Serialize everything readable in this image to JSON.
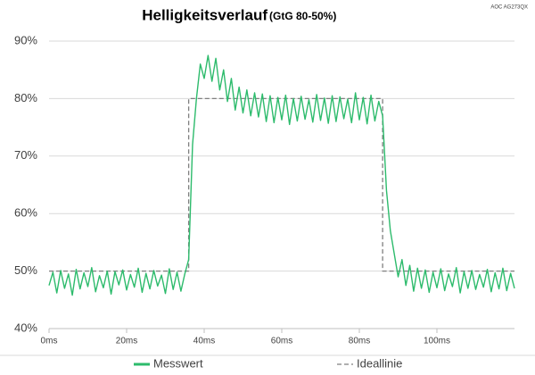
{
  "chart_data": {
    "type": "line",
    "title": "Helligkeitsverlauf",
    "subtitle": "(GtG 80-50%)",
    "annotation": "AOC AG273QX",
    "x": [
      0,
      1,
      2,
      3,
      4,
      5,
      6,
      7,
      8,
      9,
      10,
      11,
      12,
      13,
      14,
      15,
      16,
      17,
      18,
      19,
      20,
      21,
      22,
      23,
      24,
      25,
      26,
      27,
      28,
      29,
      30,
      31,
      32,
      33,
      34,
      35,
      36,
      37,
      38,
      39,
      40,
      41,
      42,
      43,
      44,
      45,
      46,
      47,
      48,
      49,
      50,
      51,
      52,
      53,
      54,
      55,
      56,
      57,
      58,
      59,
      60,
      61,
      62,
      63,
      64,
      65,
      66,
      67,
      68,
      69,
      70,
      71,
      72,
      73,
      74,
      75,
      76,
      77,
      78,
      79,
      80,
      81,
      82,
      83,
      84,
      85,
      86,
      87,
      88,
      89,
      90,
      91,
      92,
      93,
      94,
      95,
      96,
      97,
      98,
      99,
      100,
      101,
      102,
      103,
      104,
      105,
      106,
      107,
      108,
      109,
      110,
      111,
      112,
      113,
      114,
      115,
      116,
      117,
      118,
      119,
      120
    ],
    "series": [
      {
        "name": "Messwert",
        "color": "#2dbb6c",
        "dashed": false,
        "x": [
          0,
          1,
          2,
          3,
          4,
          5,
          6,
          7,
          8,
          9,
          10,
          11,
          12,
          13,
          14,
          15,
          16,
          17,
          18,
          19,
          20,
          21,
          22,
          23,
          24,
          25,
          26,
          27,
          28,
          29,
          30,
          31,
          32,
          33,
          34,
          35,
          36,
          37,
          38,
          39,
          40,
          41,
          42,
          43,
          44,
          45,
          46,
          47,
          48,
          49,
          50,
          51,
          52,
          53,
          54,
          55,
          56,
          57,
          58,
          59,
          60,
          61,
          62,
          63,
          64,
          65,
          66,
          67,
          68,
          69,
          70,
          71,
          72,
          73,
          74,
          75,
          76,
          77,
          78,
          79,
          80,
          81,
          82,
          83,
          84,
          85,
          86,
          87,
          88,
          89,
          90,
          91,
          92,
          93,
          94,
          95,
          96,
          97,
          98,
          99,
          100,
          101,
          102,
          103,
          104,
          105,
          106,
          107,
          108,
          109,
          110,
          111,
          112,
          113,
          114,
          115,
          116,
          117,
          118,
          119,
          120
        ],
        "values": [
          47.5,
          49.8,
          46.2,
          50.1,
          47.0,
          49.5,
          45.8,
          50.3,
          46.9,
          49.7,
          47.3,
          50.6,
          46.4,
          49.2,
          47.1,
          50.0,
          46.0,
          49.9,
          47.6,
          50.2,
          46.7,
          49.4,
          47.2,
          50.5,
          46.3,
          49.6,
          46.9,
          50.1,
          47.4,
          49.3,
          46.1,
          50.4,
          46.8,
          49.8,
          46.5,
          49.5,
          52,
          72,
          80,
          86,
          83.5,
          87.5,
          83,
          87,
          81.5,
          85,
          79.5,
          83.5,
          78,
          82,
          77.5,
          81.5,
          77,
          81,
          76.8,
          80.8,
          76,
          80.5,
          75.8,
          80.2,
          76.3,
          80.6,
          75.5,
          80,
          76.1,
          80.4,
          76.4,
          79.8,
          75.9,
          80.7,
          76.2,
          80.1,
          75.7,
          80.5,
          76,
          80.3,
          76.5,
          79.9,
          75.8,
          81,
          76.3,
          80.2,
          75.6,
          80.6,
          76.1,
          79.5,
          77,
          64,
          57,
          53,
          49,
          52,
          47.5,
          51,
          46.5,
          50.5,
          47,
          50.2,
          46.3,
          49.8,
          47.1,
          50.4,
          46.6,
          49.5,
          47.3,
          50.6,
          46.2,
          49.9,
          47,
          50.1,
          46.8,
          49.4,
          47.2,
          50.3,
          46.4,
          49.7,
          46.9,
          50.5,
          46.6,
          49.6,
          47
        ]
      },
      {
        "name": "Ideallinie",
        "color": "#7f7f7f",
        "dashed": true,
        "x": [
          0,
          36,
          36,
          86,
          86,
          120
        ],
        "values": [
          50,
          50,
          80,
          80,
          50,
          50
        ]
      }
    ],
    "xlim": [
      0,
      120
    ],
    "xticks": [
      {
        "value": 0,
        "label": "0ms"
      },
      {
        "value": 20,
        "label": "20ms"
      },
      {
        "value": 40,
        "label": "40ms"
      },
      {
        "value": 60,
        "label": "60ms"
      },
      {
        "value": 80,
        "label": "80ms"
      },
      {
        "value": 100,
        "label": "100ms"
      }
    ],
    "ylim": [
      40,
      90
    ],
    "yticks": [
      {
        "value": 40,
        "label": "40%"
      },
      {
        "value": 50,
        "label": "50%"
      },
      {
        "value": 60,
        "label": "60%"
      },
      {
        "value": 70,
        "label": "70%"
      },
      {
        "value": 80,
        "label": "80%"
      },
      {
        "value": 90,
        "label": "90%"
      }
    ],
    "grid": true,
    "legend": "bottom"
  }
}
